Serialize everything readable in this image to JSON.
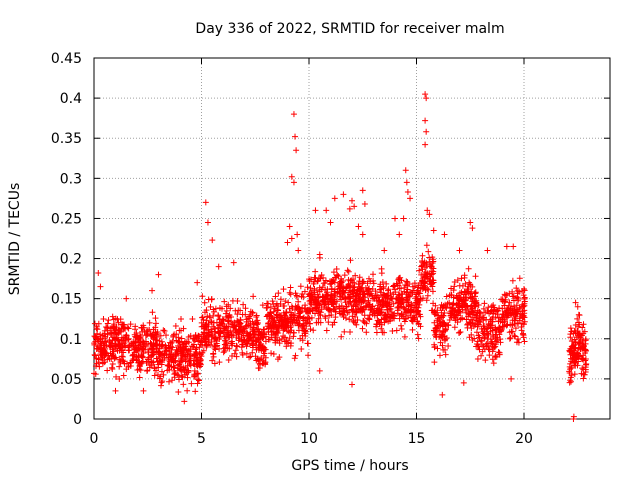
{
  "chart_data": {
    "type": "scatter",
    "title": "Day 336 of 2022, SRMTID for receiver malm",
    "xlabel": "GPS time / hours",
    "ylabel": "SRMTID / TECUs",
    "xlim": [
      0,
      24
    ],
    "ylim": [
      0,
      0.45
    ],
    "xticks": [
      0,
      5,
      10,
      15,
      20
    ],
    "yticks": [
      0,
      0.05,
      0.1,
      0.15,
      0.2,
      0.25,
      0.3,
      0.35,
      0.4,
      0.45
    ],
    "xtick_labels": [
      "0",
      "5",
      "10",
      "15",
      "20"
    ],
    "ytick_labels": [
      "0",
      "0.05",
      "0.1",
      "0.15",
      "0.2",
      "0.25",
      "0.3",
      "0.35",
      "0.4",
      "0.45"
    ],
    "grid": true,
    "marker": "+",
    "color": "#ff0000",
    "series": [
      {
        "name": "SRMTID",
        "segments": [
          {
            "t_start": 0.0,
            "t_end": 20.05,
            "samples": 2600,
            "seed": 11
          },
          {
            "t_start": 22.1,
            "t_end": 22.9,
            "samples": 140,
            "seed": 29
          }
        ],
        "points": [
          [
            0.2,
            0.182
          ],
          [
            0.3,
            0.165
          ],
          [
            1.5,
            0.15
          ],
          [
            2.7,
            0.16
          ],
          [
            3.0,
            0.18
          ],
          [
            4.8,
            0.17
          ],
          [
            5.2,
            0.27
          ],
          [
            5.3,
            0.245
          ],
          [
            5.5,
            0.223
          ],
          [
            5.8,
            0.19
          ],
          [
            6.5,
            0.195
          ],
          [
            9.2,
            0.302
          ],
          [
            9.3,
            0.38
          ],
          [
            9.35,
            0.352
          ],
          [
            9.4,
            0.335
          ],
          [
            9.3,
            0.295
          ],
          [
            9.1,
            0.24
          ],
          [
            9.2,
            0.225
          ],
          [
            9.0,
            0.22
          ],
          [
            9.45,
            0.23
          ],
          [
            9.5,
            0.21
          ],
          [
            10.3,
            0.26
          ],
          [
            10.5,
            0.205
          ],
          [
            10.8,
            0.26
          ],
          [
            11.2,
            0.275
          ],
          [
            11.0,
            0.245
          ],
          [
            11.6,
            0.28
          ],
          [
            11.9,
            0.262
          ],
          [
            12.0,
            0.272
          ],
          [
            12.1,
            0.265
          ],
          [
            12.5,
            0.285
          ],
          [
            12.6,
            0.268
          ],
          [
            12.5,
            0.23
          ],
          [
            12.3,
            0.24
          ],
          [
            13.5,
            0.21
          ],
          [
            14.0,
            0.25
          ],
          [
            14.2,
            0.23
          ],
          [
            14.4,
            0.25
          ],
          [
            14.5,
            0.31
          ],
          [
            14.55,
            0.295
          ],
          [
            14.6,
            0.283
          ],
          [
            14.7,
            0.275
          ],
          [
            15.4,
            0.405
          ],
          [
            15.45,
            0.4
          ],
          [
            15.4,
            0.372
          ],
          [
            15.45,
            0.358
          ],
          [
            15.4,
            0.342
          ],
          [
            15.5,
            0.26
          ],
          [
            15.6,
            0.255
          ],
          [
            15.8,
            0.235
          ],
          [
            16.3,
            0.23
          ],
          [
            17.0,
            0.21
          ],
          [
            17.5,
            0.245
          ],
          [
            17.6,
            0.238
          ],
          [
            18.3,
            0.21
          ],
          [
            19.2,
            0.215
          ],
          [
            19.5,
            0.215
          ],
          [
            20.0,
            0.162
          ],
          [
            19.4,
            0.05
          ],
          [
            17.2,
            0.045
          ],
          [
            16.2,
            0.03
          ],
          [
            12.0,
            0.043
          ],
          [
            10.5,
            0.06
          ],
          [
            4.2,
            0.022
          ],
          [
            2.3,
            0.035
          ],
          [
            1.0,
            0.035
          ],
          [
            22.3,
            0.0
          ],
          [
            22.32,
            0.003
          ],
          [
            22.4,
            0.145
          ],
          [
            22.5,
            0.14
          ],
          [
            22.55,
            0.13
          ]
        ]
      }
    ]
  }
}
